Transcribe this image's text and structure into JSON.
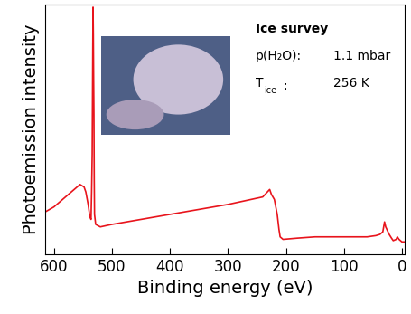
{
  "chart_data": {
    "type": "line",
    "x_label": "Binding energy (eV)",
    "y_label": "Photoemission intensity",
    "x": [
      615,
      600,
      580,
      565,
      555,
      548,
      545,
      541,
      538,
      536,
      535,
      534,
      533.5,
      533,
      532.5,
      532,
      531.5,
      531,
      530.5,
      530,
      528,
      520,
      500,
      450,
      400,
      350,
      300,
      260,
      240,
      232,
      228,
      225,
      220,
      215,
      212,
      210,
      205,
      180,
      150,
      100,
      60,
      45,
      38,
      33,
      30,
      28,
      26,
      22,
      18,
      15,
      10,
      8,
      5,
      0,
      -5
    ],
    "values": [
      17,
      19,
      23,
      26,
      28,
      27,
      25,
      20,
      15,
      14,
      25,
      40,
      60,
      82,
      99,
      88,
      70,
      56,
      30,
      16,
      12,
      11,
      12,
      14,
      16,
      18,
      20,
      22,
      23,
      25,
      26,
      24,
      22,
      16,
      10,
      7,
      6,
      6.5,
      7,
      7,
      7,
      7.5,
      8,
      9,
      13,
      11,
      10,
      8,
      6.5,
      5.5,
      6,
      7,
      6,
      5,
      5
    ],
    "color": "#e8141c",
    "xlim": [
      615,
      -5
    ],
    "ylim": [
      0,
      100
    ],
    "xticks": [
      600,
      500,
      400,
      300,
      200,
      100,
      0
    ],
    "tick_labels": "x",
    "annotations": [
      {
        "text": "Ice survey"
      },
      {
        "text": "p(H₂O):",
        "value": "1.1 mbar"
      },
      {
        "text": "T",
        "sub": "ice",
        "after": ":",
        "value": "256 K"
      }
    ]
  }
}
